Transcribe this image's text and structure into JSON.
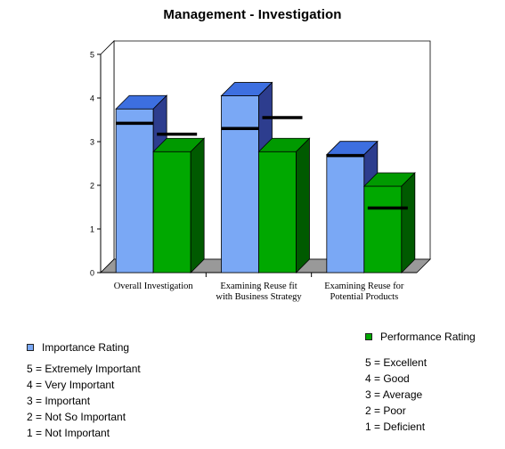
{
  "chart_data": {
    "type": "bar",
    "title": "Management - Investigation",
    "categories": [
      [
        "Overall Investigation"
      ],
      [
        "Examining Reuse fit",
        "with Business Strategy"
      ],
      [
        "Examining Reuse for",
        "Potential Products"
      ]
    ],
    "series": [
      {
        "name": "Importance Rating",
        "values": [
          3.75,
          4.05,
          2.7
        ],
        "marks": [
          3.42,
          3.3,
          2.68
        ],
        "color": "#7aa8f5"
      },
      {
        "name": "Performance Rating",
        "values": [
          2.77,
          2.77,
          1.98
        ],
        "marks": [
          3.17,
          3.55,
          1.48
        ],
        "color": "#00a800"
      }
    ],
    "ylim": [
      0,
      5
    ],
    "yticks": [
      "0",
      "1",
      "2",
      "3",
      "4",
      "5"
    ],
    "grid": false
  },
  "legend": {
    "importance": {
      "label": "Importance Rating",
      "scale": [
        "5 = Extremely Important",
        "4 = Very Important",
        "3 = Important",
        "2 = Not So Important",
        "1 = Not Important"
      ]
    },
    "performance": {
      "label": "Performance Rating",
      "scale": [
        "5 = Excellent",
        "4 = Good",
        "3 = Average",
        "2 = Poor",
        "1 = Deficient"
      ]
    }
  },
  "colors": {
    "importance_front": "#7aa8f5",
    "importance_top": "#3d6fe0",
    "importance_side": "#2d3d8e",
    "performance_front": "#00a800",
    "performance_top": "#009a00",
    "performance_side": "#005a00",
    "wall": "#ffffff",
    "floor": "#999999",
    "marker": "#000000"
  }
}
